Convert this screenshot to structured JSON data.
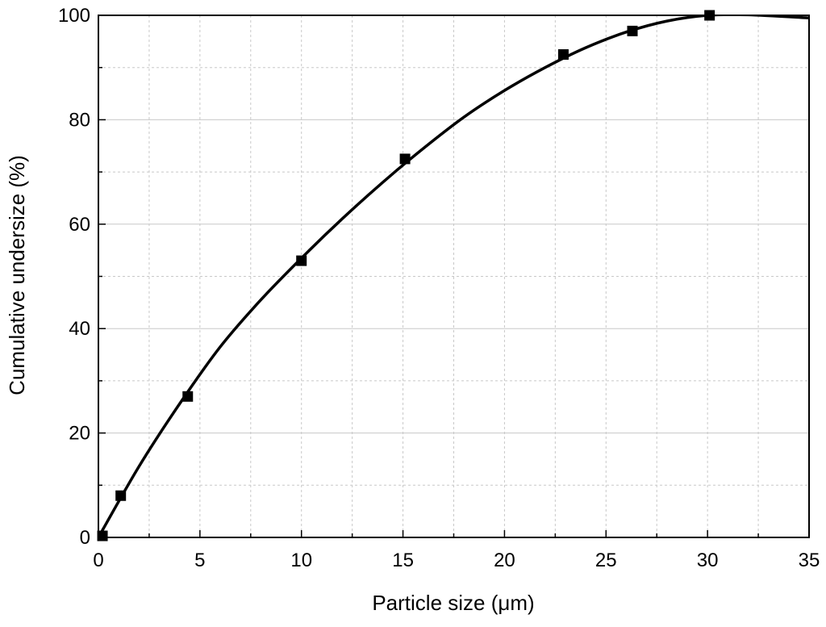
{
  "chart_data": {
    "type": "scatter",
    "title": "",
    "xlabel": "Particle size (μm)",
    "ylabel": "Cumulative undersize (%)",
    "xlim": [
      0,
      35
    ],
    "ylim": [
      0,
      100
    ],
    "x_ticks": [
      "0",
      "5",
      "10",
      "15",
      "20",
      "25",
      "30",
      "35"
    ],
    "y_ticks": [
      "0",
      "20",
      "40",
      "60",
      "80",
      "100"
    ],
    "grid": "major and minor dashed lines, light gray",
    "series": [
      {
        "marker": "square",
        "points": [
          {
            "x": 0.2,
            "y": 0.3
          },
          {
            "x": 1.1,
            "y": 8
          },
          {
            "x": 4.4,
            "y": 27
          },
          {
            "x": 10.0,
            "y": 53
          },
          {
            "x": 15.1,
            "y": 72.5
          },
          {
            "x": 22.9,
            "y": 92.5
          },
          {
            "x": 26.3,
            "y": 97
          },
          {
            "x": 30.1,
            "y": 100
          }
        ]
      }
    ],
    "fit_curve": {
      "style": "solid black smooth curve",
      "x": [
        0,
        2,
        4,
        6,
        8,
        10,
        12,
        14,
        16,
        18,
        20,
        22,
        24,
        26,
        28,
        30,
        32,
        35
      ],
      "y": [
        0,
        13.6,
        25.6,
        36.5,
        45.5,
        53.5,
        61.0,
        68.0,
        74.5,
        80.5,
        85.6,
        90.0,
        93.8,
        96.8,
        98.9,
        100.0,
        100.1,
        99.5
      ]
    },
    "colors": {
      "series": "#000000",
      "grid": "#c8c8c8"
    }
  }
}
